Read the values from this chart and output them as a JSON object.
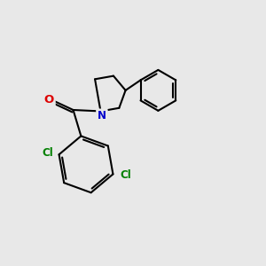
{
  "bg_color": "#e8e8e8",
  "bond_color": "#000000",
  "bond_width": 1.5,
  "atom_colors": {
    "O": "#dd0000",
    "N": "#0000cc",
    "Cl": "#008000"
  },
  "font_size": 8.5,
  "fig_width": 3.0,
  "fig_height": 3.0,
  "dpi": 100
}
